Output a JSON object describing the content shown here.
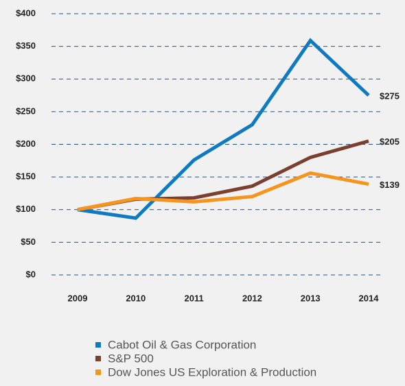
{
  "chart_data": {
    "type": "line",
    "categories": [
      "2009",
      "2010",
      "2011",
      "2012",
      "2013",
      "2014"
    ],
    "series": [
      {
        "name": "Cabot Oil & Gas Corporation",
        "color": "#0f7ac0",
        "values": [
          100,
          87,
          176,
          230,
          359,
          275
        ],
        "value_labels": [
          null,
          null,
          null,
          null,
          null,
          "$275"
        ]
      },
      {
        "name": "S&P 500",
        "color": "#7a3f2e",
        "values": [
          100,
          116,
          118,
          136,
          180,
          205
        ],
        "value_labels": [
          null,
          null,
          null,
          null,
          null,
          "$205"
        ]
      },
      {
        "name": "Dow Jones US Exploration & Production",
        "color": "#f7941d",
        "values": [
          100,
          117,
          112,
          120,
          156,
          139
        ],
        "value_labels": [
          null,
          null,
          null,
          null,
          null,
          "$139"
        ]
      }
    ],
    "ylim": [
      0,
      400
    ],
    "yticks": [
      {
        "value": 0,
        "label": "$0"
      },
      {
        "value": 50,
        "label": "$50"
      },
      {
        "value": 100,
        "label": "$100"
      },
      {
        "value": 150,
        "label": "$150"
      },
      {
        "value": 200,
        "label": "$200"
      },
      {
        "value": 250,
        "label": "$250"
      },
      {
        "value": 300,
        "label": "$300"
      },
      {
        "value": 350,
        "label": "$350"
      },
      {
        "value": 400,
        "label": "$400"
      }
    ],
    "grid": true,
    "legend": "bottom"
  }
}
